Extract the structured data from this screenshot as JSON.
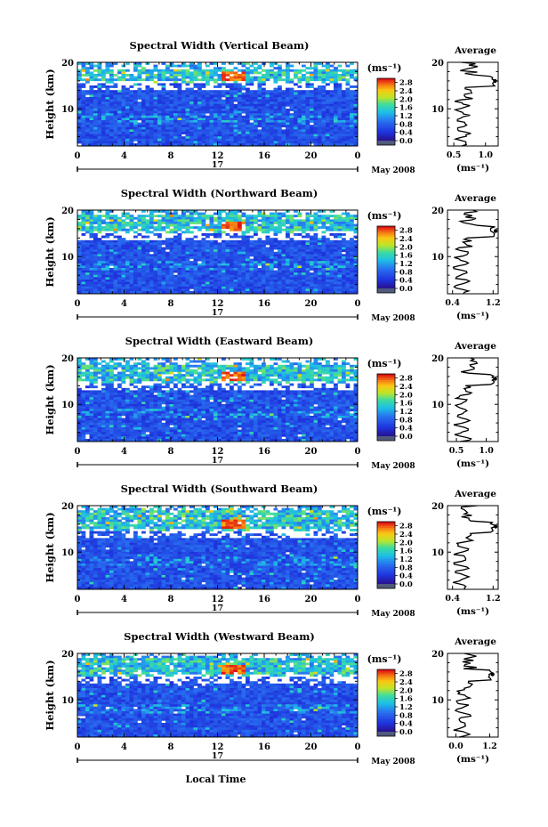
{
  "chart_data": [
    {
      "type": "heatmap",
      "title": "Spectral Width (Vertical Beam)",
      "ylabel": "Height (km)",
      "x_ticks": [
        "0",
        "4",
        "8",
        "12",
        "16",
        "20",
        "0"
      ],
      "y_ticks": [
        "10",
        "20"
      ],
      "xlim": [
        0,
        24
      ],
      "ylim": [
        2,
        20
      ],
      "day_label": "17",
      "month_label": "May 2008",
      "colorbar": {
        "unit": "(ms⁻¹)",
        "ticks": [
          "0.0",
          "0.4",
          "0.8",
          "1.2",
          "1.6",
          "2.0",
          "2.4",
          "2.8"
        ],
        "range": [
          0.0,
          3.0
        ]
      },
      "bright_band_km": [
        15.5,
        18.5
      ],
      "average_profile": {
        "title": "Average",
        "xlabel": "(ms⁻¹)",
        "x_ticks": [
          "0.5",
          "1.0"
        ],
        "y_ticks": [
          "10",
          "20"
        ],
        "xlim": [
          0.4,
          1.2
        ],
        "peak_height_km": 16.0,
        "peak_value": 1.15
      }
    },
    {
      "type": "heatmap",
      "title": "Spectral Width (Northward Beam)",
      "ylabel": "Height (km)",
      "x_ticks": [
        "0",
        "4",
        "8",
        "12",
        "16",
        "20",
        "0"
      ],
      "y_ticks": [
        "10",
        "20"
      ],
      "xlim": [
        0,
        24
      ],
      "ylim": [
        2,
        20
      ],
      "day_label": "17",
      "month_label": "May 2008",
      "colorbar": {
        "unit": "(ms⁻¹)",
        "ticks": [
          "0.0",
          "0.4",
          "0.8",
          "1.2",
          "1.6",
          "2.0",
          "2.4",
          "2.8"
        ],
        "range": [
          0.0,
          3.0
        ]
      },
      "bright_band_km": [
        15.0,
        19.0
      ],
      "average_profile": {
        "title": "Average",
        "xlabel": "(ms⁻¹)",
        "x_ticks": [
          "0.4",
          "1.2"
        ],
        "y_ticks": [
          "10",
          "20"
        ],
        "xlim": [
          0.3,
          1.3
        ],
        "peak_height_km": 15.5,
        "peak_value": 1.25
      }
    },
    {
      "type": "heatmap",
      "title": "Spectral Width (Eastward Beam)",
      "ylabel": "Height (km)",
      "x_ticks": [
        "0",
        "4",
        "8",
        "12",
        "16",
        "20",
        "0"
      ],
      "y_ticks": [
        "10",
        "20"
      ],
      "xlim": [
        0,
        24
      ],
      "ylim": [
        2,
        20
      ],
      "day_label": "17",
      "month_label": "May 2008",
      "colorbar": {
        "unit": "(ms⁻¹)",
        "ticks": [
          "0.0",
          "0.4",
          "0.8",
          "1.2",
          "1.6",
          "2.0",
          "2.4",
          "2.8"
        ],
        "range": [
          0.0,
          3.0
        ]
      },
      "bright_band_km": [
        14.5,
        18.5
      ],
      "average_profile": {
        "title": "Average",
        "xlabel": "(ms⁻¹)",
        "x_ticks": [
          "0.5",
          "1.0"
        ],
        "y_ticks": [
          "10",
          "20"
        ],
        "xlim": [
          0.35,
          1.2
        ],
        "peak_height_km": 15.5,
        "peak_value": 1.15
      }
    },
    {
      "type": "heatmap",
      "title": "Spectral Width (Southward Beam)",
      "ylabel": "Height (km)",
      "x_ticks": [
        "0",
        "4",
        "8",
        "12",
        "16",
        "20",
        "0"
      ],
      "y_ticks": [
        "10",
        "20"
      ],
      "xlim": [
        0,
        24
      ],
      "ylim": [
        2,
        20
      ],
      "day_label": "17",
      "month_label": "May 2008",
      "colorbar": {
        "unit": "(ms⁻¹)",
        "ticks": [
          "0.0",
          "0.4",
          "0.8",
          "1.2",
          "1.6",
          "2.0",
          "2.4",
          "2.8"
        ],
        "range": [
          0.0,
          3.0
        ]
      },
      "bright_band_km": [
        14.5,
        19.0
      ],
      "average_profile": {
        "title": "Average",
        "xlabel": "(ms⁻¹)",
        "x_ticks": [
          "0.4",
          "1.2"
        ],
        "y_ticks": [
          "10",
          "20"
        ],
        "xlim": [
          0.3,
          1.3
        ],
        "peak_height_km": 15.5,
        "peak_value": 1.25
      }
    },
    {
      "type": "heatmap",
      "title": "Spectral Width (Westward Beam)",
      "ylabel": "Height (km)",
      "x_ticks": [
        "0",
        "4",
        "8",
        "12",
        "16",
        "20",
        "0"
      ],
      "y_ticks": [
        "10",
        "20"
      ],
      "xlim": [
        0,
        24
      ],
      "ylim": [
        2,
        20
      ],
      "day_label": "17",
      "month_label": "May 2008",
      "colorbar": {
        "unit": "(ms⁻¹)",
        "ticks": [
          "0.0",
          "0.4",
          "0.8",
          "1.2",
          "1.6",
          "2.0",
          "2.4",
          "2.8"
        ],
        "range": [
          0.0,
          3.0
        ]
      },
      "bright_band_km": [
        15.0,
        19.0
      ],
      "average_profile": {
        "title": "Average",
        "xlabel": "(ms⁻¹)",
        "x_ticks": [
          "0.0",
          "1.2"
        ],
        "y_ticks": [
          "10",
          "20"
        ],
        "xlim": [
          -0.3,
          1.5
        ],
        "peak_height_km": 15.5,
        "peak_value": 1.3
      }
    }
  ],
  "xlabel": "Local Time",
  "colors": {
    "low": "#1a2fd0",
    "mid": "#19c8c8",
    "high": "#f0e020",
    "peak": "#e01010",
    "bottom": "#505a7a"
  }
}
